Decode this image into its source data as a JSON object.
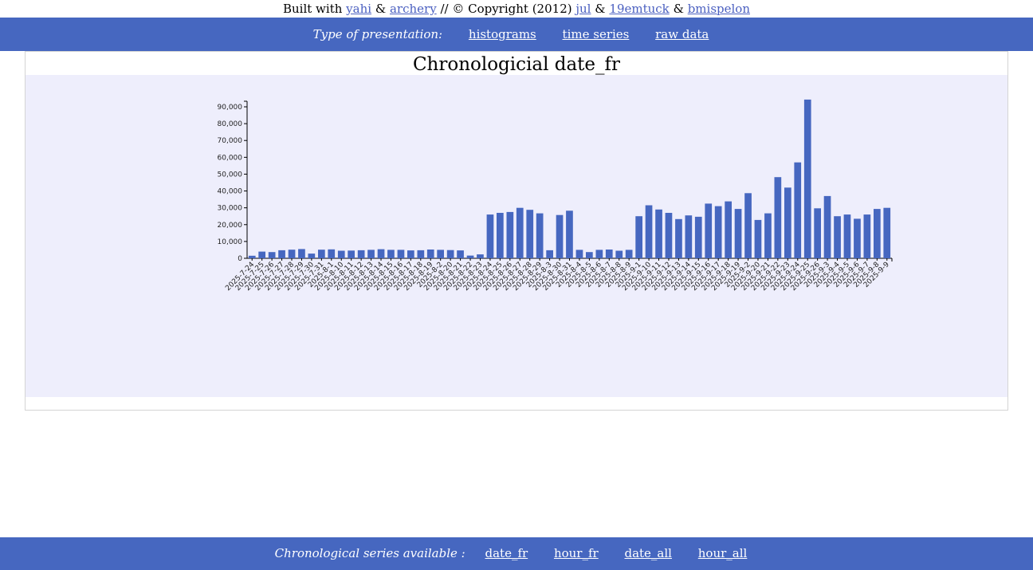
{
  "credits": {
    "prefix": "Built with",
    "link1": "yahi",
    "amp1": "&",
    "link2": "archery",
    "middle": "// © Copyright (2012)",
    "link3": "jul",
    "amp2": "&",
    "link4": "19emtuck",
    "amp3": "&",
    "link5": "bmispelon"
  },
  "topbar": {
    "label": "Type of presentation:",
    "links": [
      "histograms",
      "time series",
      "raw data"
    ]
  },
  "bottombar": {
    "label": "Chronological series available :",
    "links": [
      "date_fr",
      "hour_fr",
      "date_all",
      "hour_all"
    ]
  },
  "colors": {
    "bar": "#4667c0",
    "plot_bg": "#eeeefc",
    "bar_header": "#4667c0"
  },
  "chart_data": {
    "type": "bar",
    "title": "Chronologicial date_fr",
    "xlabel": "",
    "ylabel": "",
    "ylim": [
      0,
      90000
    ],
    "yticks": [
      0,
      10000,
      20000,
      30000,
      40000,
      50000,
      60000,
      70000,
      80000,
      90000
    ],
    "ytick_labels": [
      "0",
      "10,000",
      "20,000",
      "30,000",
      "40,000",
      "50,000",
      "60,000",
      "70,000",
      "80,000",
      "90,000"
    ],
    "grid": false,
    "categories": [
      "2025-7-24",
      "2025-7-25",
      "2025-7-26",
      "2025-7-27",
      "2025-7-28",
      "2025-7-29",
      "2025-7-30",
      "2025-7-31",
      "2025-8-1",
      "2025-8-10",
      "2025-8-11",
      "2025-8-12",
      "2025-8-13",
      "2025-8-14",
      "2025-8-15",
      "2025-8-16",
      "2025-8-17",
      "2025-8-18",
      "2025-8-19",
      "2025-8-2",
      "2025-8-20",
      "2025-8-21",
      "2025-8-22",
      "2025-8-23",
      "2025-8-24",
      "2025-8-25",
      "2025-8-26",
      "2025-8-27",
      "2025-8-28",
      "2025-8-29",
      "2025-8-3",
      "2025-8-30",
      "2025-8-31",
      "2025-8-4",
      "2025-8-5",
      "2025-8-6",
      "2025-8-7",
      "2025-8-8",
      "2025-8-9",
      "2025-9-1",
      "2025-9-10",
      "2025-9-11",
      "2025-9-12",
      "2025-9-13",
      "2025-9-14",
      "2025-9-15",
      "2025-9-16",
      "2025-9-17",
      "2025-9-18",
      "2025-9-19",
      "2025-9-2",
      "2025-9-20",
      "2025-9-21",
      "2025-9-22",
      "2025-9-23",
      "2025-9-24",
      "2025-9-25",
      "2025-9-26",
      "2025-9-3",
      "2025-9-4",
      "2025-9-5",
      "2025-9-6",
      "2025-9-7",
      "2025-9-8",
      "2025-9-9"
    ],
    "values": [
      1500,
      4000,
      3700,
      4800,
      5100,
      5500,
      2800,
      5100,
      5300,
      4500,
      4600,
      4800,
      5000,
      5400,
      5000,
      5000,
      4700,
      4800,
      5200,
      5000,
      4900,
      4700,
      1600,
      2300,
      26000,
      27000,
      27500,
      30000,
      28800,
      26700,
      4800,
      25700,
      28300,
      5000,
      3700,
      5000,
      5200,
      4500,
      5000,
      25000,
      31500,
      29000,
      27000,
      23300,
      25500,
      24700,
      32500,
      31000,
      33800,
      29300,
      38700,
      22800,
      26700,
      48200,
      42000,
      57000,
      94300,
      29700,
      37000,
      25000,
      26000,
      23500,
      26000,
      29300,
      30000
    ]
  }
}
